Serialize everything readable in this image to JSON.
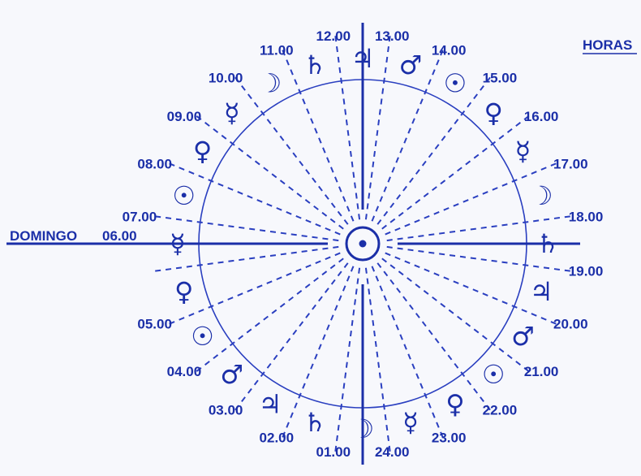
{
  "header": {
    "hours_label": "HORAS"
  },
  "start_label": {
    "day": "DOMINGO",
    "time": "06.00"
  },
  "hours": [
    {
      "time": "01.00",
      "planet": "♄"
    },
    {
      "time": "02.00",
      "planet": "♃"
    },
    {
      "time": "03.00",
      "planet": "♂"
    },
    {
      "time": "04.00",
      "planet": "☉"
    },
    {
      "time": "05.00",
      "planet": "♀"
    },
    {
      "time": "06.00",
      "planet": "☿"
    },
    {
      "time": "07.00",
      "planet": "☉"
    },
    {
      "time": "08.00",
      "planet": "♀"
    },
    {
      "time": "09.00",
      "planet": "☿"
    },
    {
      "time": "10.00",
      "planet": "☽"
    },
    {
      "time": "11.00",
      "planet": "♄"
    },
    {
      "time": "12.00",
      "planet": "♃"
    },
    {
      "time": "13.00",
      "planet": "♂"
    },
    {
      "time": "14.00",
      "planet": "☉"
    },
    {
      "time": "15.00",
      "planet": "♀"
    },
    {
      "time": "16.00",
      "planet": "☿"
    },
    {
      "time": "17.00",
      "planet": "☽"
    },
    {
      "time": "18.00",
      "planet": "♄"
    },
    {
      "time": "19.00",
      "planet": "♃"
    },
    {
      "time": "20.00",
      "planet": "♂"
    },
    {
      "time": "21.00",
      "planet": "☉"
    },
    {
      "time": "22.00",
      "planet": "♀"
    },
    {
      "time": "23.00",
      "planet": "☿"
    },
    {
      "time": "24.00",
      "planet": "☽"
    }
  ],
  "center": {
    "symbol": "☉"
  },
  "colors": {
    "ink": "#1b2fa8",
    "line": "#2a3fc0",
    "background": "#f7f8fc"
  }
}
